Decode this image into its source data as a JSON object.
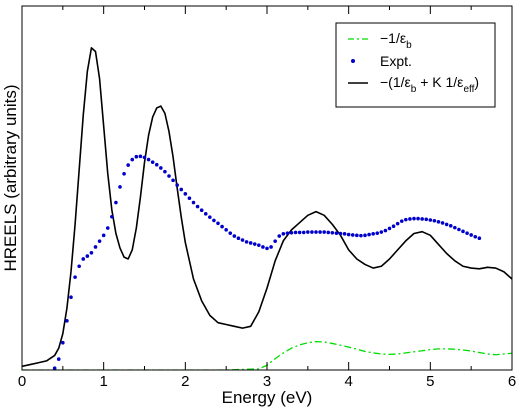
{
  "chart_data": {
    "type": "line",
    "xlabel": "Energy (eV)",
    "ylabel": "HREELS (arbitrary units)",
    "xlim": [
      0,
      6
    ],
    "ylim": [
      0,
      100
    ],
    "xticks": [
      0,
      1,
      2,
      3,
      4,
      5,
      6
    ],
    "y_tick_labels": false,
    "grid": false,
    "legend_position": "top-right",
    "series": [
      {
        "name": "−1/ε",
        "name_sub": "b",
        "style": "dash-dot",
        "color": "#00dd00",
        "x": [
          0.0,
          0.5,
          1.0,
          1.5,
          2.0,
          2.5,
          2.9,
          3.0,
          3.1,
          3.2,
          3.3,
          3.4,
          3.5,
          3.6,
          3.7,
          3.8,
          3.9,
          4.0,
          4.1,
          4.2,
          4.3,
          4.4,
          4.5,
          4.6,
          4.7,
          4.8,
          4.9,
          5.0,
          5.1,
          5.2,
          5.3,
          5.4,
          5.5,
          5.6,
          5.7,
          5.8,
          5.9,
          6.0
        ],
        "y": [
          0.0,
          0.0,
          0.0,
          0.0,
          0.0,
          0.0,
          0.3,
          1.3,
          3.1,
          4.7,
          6.0,
          6.9,
          7.5,
          7.8,
          7.7,
          7.3,
          6.8,
          6.3,
          5.7,
          5.1,
          4.7,
          4.4,
          4.3,
          4.4,
          4.7,
          5.0,
          5.3,
          5.6,
          5.8,
          5.8,
          5.7,
          5.5,
          5.2,
          4.8,
          4.4,
          4.2,
          4.4,
          4.6
        ]
      },
      {
        "name": "Expt.",
        "style": "dots",
        "color": "#0000cc",
        "x": [
          0.4,
          0.45,
          0.5,
          0.55,
          0.6,
          0.65,
          0.7,
          0.75,
          0.8,
          0.85,
          0.9,
          0.95,
          1.0,
          1.05,
          1.1,
          1.15,
          1.2,
          1.25,
          1.3,
          1.35,
          1.4,
          1.45,
          1.5,
          1.55,
          1.6,
          1.65,
          1.7,
          1.75,
          1.8,
          1.85,
          1.9,
          1.95,
          2.0,
          2.05,
          2.1,
          2.15,
          2.2,
          2.25,
          2.3,
          2.35,
          2.4,
          2.45,
          2.5,
          2.55,
          2.6,
          2.65,
          2.7,
          2.75,
          2.8,
          2.85,
          2.9,
          2.95,
          3.0,
          3.05,
          3.1,
          3.15,
          3.2,
          3.25,
          3.3,
          3.35,
          3.4,
          3.45,
          3.5,
          3.55,
          3.6,
          3.65,
          3.7,
          3.75,
          3.8,
          3.85,
          3.9,
          3.95,
          4.0,
          4.05,
          4.1,
          4.15,
          4.2,
          4.25,
          4.3,
          4.35,
          4.4,
          4.45,
          4.5,
          4.55,
          4.6,
          4.65,
          4.7,
          4.75,
          4.8,
          4.85,
          4.9,
          4.95,
          5.0,
          5.05,
          5.1,
          5.15,
          5.2,
          5.25,
          5.3,
          5.35,
          5.4,
          5.45,
          5.5,
          5.55,
          5.6
        ],
        "y": [
          0.5,
          3.0,
          7.5,
          13.5,
          20.0,
          25.5,
          28.5,
          30.5,
          31.3,
          32.2,
          33.8,
          35.4,
          37.0,
          39.0,
          42.1,
          46.0,
          50.3,
          53.9,
          56.3,
          57.8,
          58.6,
          58.7,
          58.4,
          57.8,
          57.1,
          56.4,
          55.5,
          54.5,
          53.3,
          52.1,
          50.8,
          49.6,
          48.4,
          47.2,
          46.0,
          44.9,
          43.9,
          42.9,
          42.0,
          41.1,
          40.3,
          39.4,
          38.5,
          37.6,
          36.8,
          36.2,
          35.7,
          35.2,
          34.9,
          34.6,
          34.3,
          33.8,
          33.4,
          33.8,
          35.4,
          36.8,
          37.4,
          37.6,
          37.7,
          37.8,
          37.8,
          37.8,
          37.9,
          37.9,
          37.9,
          37.9,
          37.9,
          37.8,
          37.7,
          37.6,
          37.5,
          37.4,
          37.2,
          37.1,
          37.0,
          36.9,
          37.0,
          37.2,
          37.4,
          37.6,
          37.9,
          38.3,
          38.9,
          39.5,
          40.2,
          40.9,
          41.3,
          41.5,
          41.6,
          41.6,
          41.5,
          41.4,
          41.2,
          41.0,
          40.7,
          40.4,
          40.0,
          39.6,
          39.1,
          38.6,
          38.1,
          37.6,
          37.1,
          36.6,
          36.2
        ]
      },
      {
        "name": "−(1/ε",
        "name_sub": "b",
        "name_mid": " + K 1/ε",
        "name_sub2": "eff",
        "name_end": ")",
        "style": "solid",
        "color": "#000000",
        "x": [
          0.0,
          0.1,
          0.2,
          0.3,
          0.4,
          0.45,
          0.5,
          0.55,
          0.6,
          0.65,
          0.7,
          0.75,
          0.8,
          0.85,
          0.9,
          0.95,
          1.0,
          1.05,
          1.1,
          1.15,
          1.2,
          1.25,
          1.3,
          1.35,
          1.4,
          1.45,
          1.5,
          1.55,
          1.6,
          1.65,
          1.7,
          1.75,
          1.8,
          1.85,
          1.9,
          1.95,
          2.0,
          2.1,
          2.2,
          2.3,
          2.4,
          2.5,
          2.6,
          2.7,
          2.8,
          2.9,
          3.0,
          3.1,
          3.2,
          3.3,
          3.4,
          3.5,
          3.6,
          3.7,
          3.8,
          3.9,
          4.0,
          4.1,
          4.2,
          4.3,
          4.4,
          4.5,
          4.6,
          4.7,
          4.8,
          4.9,
          5.0,
          5.1,
          5.2,
          5.3,
          5.4,
          5.5,
          5.6,
          5.7,
          5.8,
          5.9,
          6.0
        ],
        "y": [
          1.0,
          1.5,
          2.0,
          2.5,
          4.0,
          6.0,
          10.0,
          17.0,
          27.0,
          40.0,
          55.0,
          70.0,
          82.0,
          88.5,
          87.5,
          80.0,
          67.0,
          54.0,
          44.0,
          37.5,
          33.5,
          31.0,
          30.5,
          33.0,
          39.0,
          47.5,
          57.0,
          64.5,
          69.5,
          72.0,
          72.5,
          70.5,
          65.5,
          58.5,
          50.0,
          42.0,
          35.0,
          25.0,
          19.0,
          15.0,
          13.0,
          12.5,
          12.0,
          11.5,
          12.0,
          16.0,
          22.5,
          30.0,
          35.5,
          38.5,
          40.5,
          42.5,
          43.5,
          42.5,
          40.0,
          37.0,
          33.0,
          30.5,
          29.0,
          28.0,
          28.5,
          30.5,
          33.0,
          35.5,
          37.5,
          38.0,
          37.0,
          34.5,
          32.0,
          30.0,
          28.5,
          28.0,
          27.8,
          28.2,
          28.0,
          27.0,
          25.0
        ]
      }
    ]
  }
}
